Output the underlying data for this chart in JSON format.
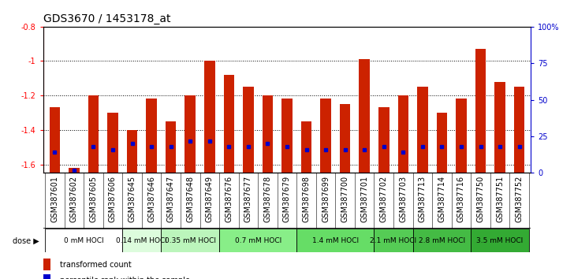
{
  "title": "GDS3670 / 1453178_at",
  "samples": [
    "GSM387601",
    "GSM387602",
    "GSM387605",
    "GSM387606",
    "GSM387645",
    "GSM387646",
    "GSM387647",
    "GSM387648",
    "GSM387649",
    "GSM387676",
    "GSM387677",
    "GSM387678",
    "GSM387679",
    "GSM387698",
    "GSM387699",
    "GSM387700",
    "GSM387701",
    "GSM387702",
    "GSM387703",
    "GSM387713",
    "GSM387714",
    "GSM387716",
    "GSM387750",
    "GSM387751",
    "GSM387752"
  ],
  "transformed_count": [
    -1.27,
    -1.62,
    -1.2,
    -1.3,
    -1.4,
    -1.22,
    -1.35,
    -1.2,
    -1.0,
    -1.08,
    -1.15,
    -1.2,
    -1.22,
    -1.35,
    -1.22,
    -1.25,
    -0.99,
    -1.27,
    -1.2,
    -1.15,
    -1.3,
    -1.22,
    -0.93,
    -1.12,
    -1.15
  ],
  "percentile_rank": [
    14,
    2,
    18,
    16,
    20,
    18,
    18,
    22,
    22,
    18,
    18,
    20,
    18,
    16,
    16,
    16,
    16,
    18,
    14,
    18,
    18,
    18,
    18,
    18,
    18
  ],
  "dose_groups": [
    {
      "label": "0 mM HOCl",
      "start": 0,
      "end": 4,
      "color": "#ffffff"
    },
    {
      "label": "0.14 mM HOCl",
      "start": 4,
      "end": 6,
      "color": "#ddfcdd"
    },
    {
      "label": "0.35 mM HOCl",
      "start": 6,
      "end": 9,
      "color": "#bbf5bb"
    },
    {
      "label": "0.7 mM HOCl",
      "start": 9,
      "end": 13,
      "color": "#88ee88"
    },
    {
      "label": "1.4 mM HOCl",
      "start": 13,
      "end": 17,
      "color": "#66dd66"
    },
    {
      "label": "2.1 mM HOCl",
      "start": 17,
      "end": 19,
      "color": "#55cc55"
    },
    {
      "label": "2.8 mM HOCl",
      "start": 19,
      "end": 22,
      "color": "#44bb44"
    },
    {
      "label": "3.5 mM HOCl",
      "start": 22,
      "end": 25,
      "color": "#33aa33"
    }
  ],
  "ylim_left": [
    -1.65,
    -0.8
  ],
  "ylim_right": [
    0,
    100
  ],
  "right_yticks": [
    0,
    25,
    50,
    75,
    100
  ],
  "right_yticklabels": [
    "0",
    "25",
    "50",
    "75",
    "100%"
  ],
  "left_yticks": [
    -1.6,
    -1.4,
    -1.2,
    -1.0,
    -0.8
  ],
  "left_yticklabels": [
    "-1.6",
    "-1.4",
    "-1.2",
    "-1",
    "-0.8"
  ],
  "bar_color": "#cc2200",
  "dot_color": "#0000cc",
  "bar_width": 0.55,
  "background_color": "#ffffff",
  "title_fontsize": 10,
  "tick_fontsize": 7,
  "dose_label_fontsize": 6.5,
  "legend_fontsize": 7,
  "sample_label_bg": "#cccccc"
}
